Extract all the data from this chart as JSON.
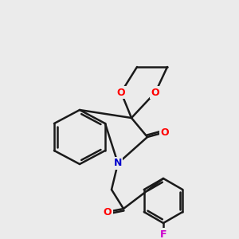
{
  "bg_color": "#ebebeb",
  "bond_color": "#1a1a1a",
  "bond_width": 1.8,
  "atom_colors": {
    "O": "#ff0000",
    "N": "#0000ff",
    "F": "#cc00cc",
    "C_carbonyl": "#ff0000"
  },
  "font_size_atom": 9,
  "font_size_label": 9
}
